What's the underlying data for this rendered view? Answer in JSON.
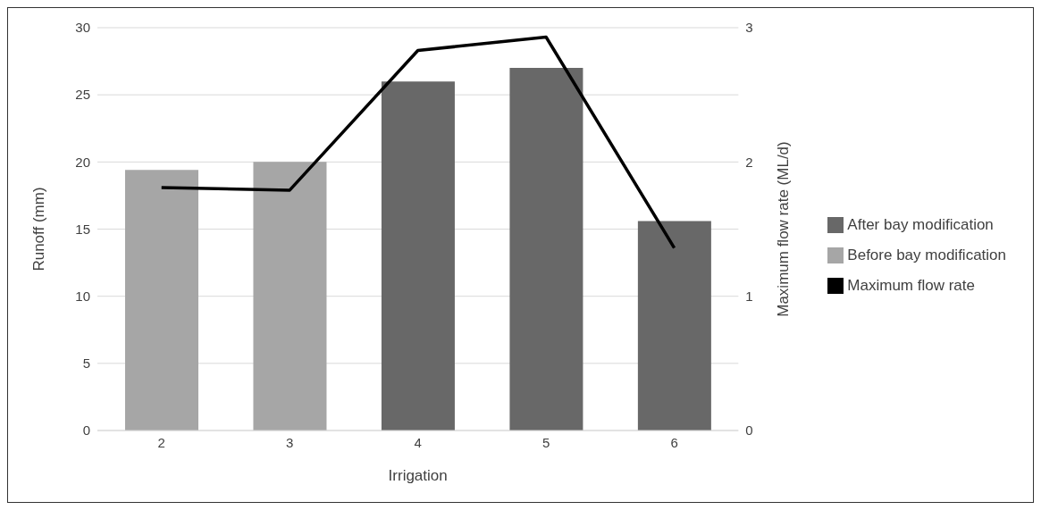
{
  "chart_data": {
    "type": "bar",
    "xlabel": "Irrigation",
    "ylabel": "Runoff (mm)",
    "y2label": "Maximum flow rate (ML/d)",
    "categories": [
      "2",
      "3",
      "4",
      "5",
      "6"
    ],
    "stacked": true,
    "series": [
      {
        "name": "Before bay modification",
        "color": "#a6a6a6",
        "values": [
          19.4,
          20.0,
          null,
          null,
          null
        ]
      },
      {
        "name": "After bay modification",
        "color": "#686868",
        "values": [
          null,
          null,
          26.0,
          27.0,
          15.6
        ]
      },
      {
        "name": "Maximum flow rate",
        "type": "line",
        "axis": "y2",
        "color": "#000000",
        "values": [
          1.81,
          1.79,
          2.83,
          2.93,
          1.36
        ]
      }
    ],
    "ylim": [
      0,
      30
    ],
    "yticks": [
      0,
      5,
      10,
      15,
      20,
      25,
      30
    ],
    "y2lim": [
      0,
      3
    ],
    "y2ticks": [
      0,
      1,
      2,
      3
    ],
    "grid": "y",
    "legend": "right",
    "marker": "none",
    "line_style": "solid"
  }
}
